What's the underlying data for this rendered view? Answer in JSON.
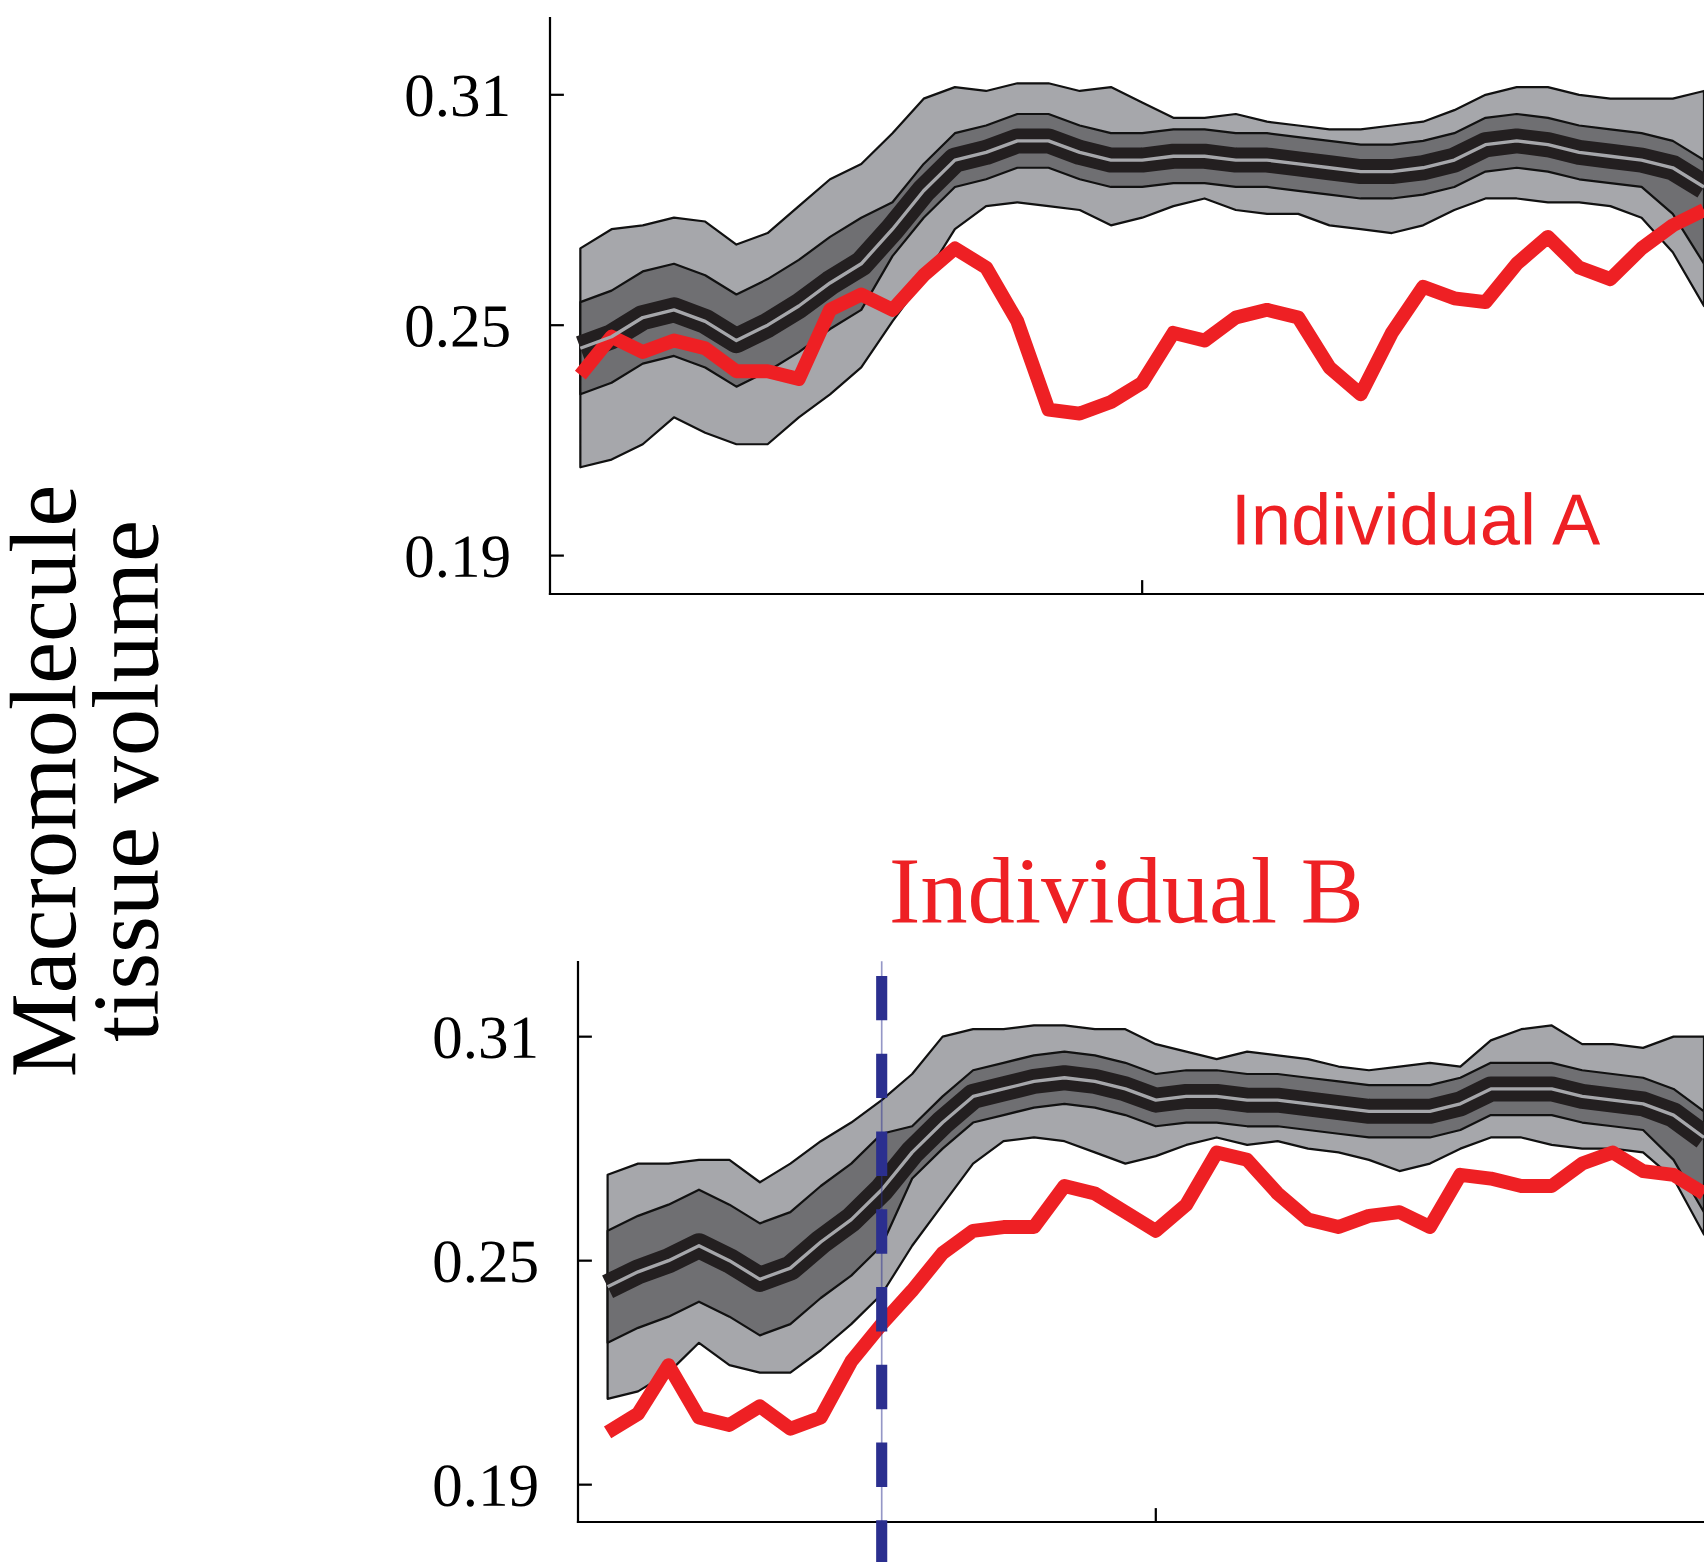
{
  "chart_data": [
    {
      "type": "line",
      "ylabel": "Macromolecule\ntissue volume",
      "categories": [
        null,
        null,
        null,
        null,
        null,
        null,
        null,
        null,
        null,
        null,
        null,
        null,
        null,
        null,
        null,
        null,
        null,
        null,
        null,
        null,
        null,
        null,
        null,
        null,
        null,
        null,
        null,
        null,
        null,
        null,
        null,
        null,
        null,
        null,
        null,
        null,
        null
      ],
      "ylim": [
        0.18,
        0.33
      ],
      "yticks": [
        0.19,
        0.25,
        0.31
      ],
      "tick_labels": "y",
      "series": [
        {
          "color": "#a6a7ab",
          "values": [
            0.244,
            0.247,
            0.252,
            0.254,
            0.251,
            0.246,
            0.25,
            0.255,
            0.261,
            0.266,
            0.275,
            0.285,
            0.293,
            0.295,
            0.298,
            0.298,
            0.295,
            0.293,
            0.293,
            0.294,
            0.294,
            0.293,
            0.293,
            0.292,
            0.291,
            0.29,
            0.29,
            0.291,
            0.293,
            0.297,
            0.298,
            0.297,
            0.295,
            0.294,
            0.293,
            0.291,
            0.286
          ],
          "lower": [
            0.213,
            0.215,
            0.219,
            0.226,
            0.222,
            0.219,
            0.219,
            0.226,
            0.232,
            0.239,
            0.251,
            0.262,
            0.275,
            0.281,
            0.282,
            0.281,
            0.28,
            0.276,
            0.278,
            0.281,
            0.283,
            0.28,
            0.279,
            0.279,
            0.276,
            0.275,
            0.274,
            0.276,
            0.28,
            0.283,
            0.283,
            0.282,
            0.282,
            0.281,
            0.278,
            0.269,
            0.255
          ],
          "upper": [
            0.27,
            0.275,
            0.276,
            0.278,
            0.277,
            0.271,
            0.274,
            0.281,
            0.288,
            0.292,
            0.3,
            0.309,
            0.312,
            0.311,
            0.313,
            0.313,
            0.311,
            0.312,
            0.308,
            0.304,
            0.304,
            0.305,
            0.303,
            0.302,
            0.301,
            0.301,
            0.302,
            0.303,
            0.306,
            0.31,
            0.312,
            0.312,
            0.31,
            0.309,
            0.309,
            0.309,
            0.311
          ]
        },
        {
          "color": "#231f20",
          "values": [
            0.244,
            0.247,
            0.252,
            0.254,
            0.251,
            0.246,
            0.25,
            0.255,
            0.261,
            0.266,
            0.275,
            0.285,
            0.293,
            0.295,
            0.298,
            0.298,
            0.295,
            0.293,
            0.293,
            0.294,
            0.294,
            0.293,
            0.293,
            0.292,
            0.291,
            0.29,
            0.29,
            0.291,
            0.293,
            0.297,
            0.298,
            0.297,
            0.295,
            0.294,
            0.293,
            0.291,
            0.286
          ],
          "lower": [
            0.232,
            0.235,
            0.24,
            0.242,
            0.239,
            0.234,
            0.238,
            0.243,
            0.249,
            0.254,
            0.268,
            0.278,
            0.286,
            0.288,
            0.291,
            0.291,
            0.288,
            0.286,
            0.286,
            0.287,
            0.287,
            0.286,
            0.286,
            0.285,
            0.284,
            0.283,
            0.283,
            0.284,
            0.286,
            0.29,
            0.291,
            0.29,
            0.288,
            0.287,
            0.286,
            0.279,
            0.266
          ],
          "upper": [
            0.256,
            0.259,
            0.264,
            0.266,
            0.263,
            0.258,
            0.262,
            0.267,
            0.273,
            0.278,
            0.282,
            0.292,
            0.3,
            0.302,
            0.305,
            0.305,
            0.302,
            0.3,
            0.3,
            0.301,
            0.301,
            0.3,
            0.3,
            0.299,
            0.298,
            0.297,
            0.297,
            0.298,
            0.3,
            0.304,
            0.305,
            0.304,
            0.302,
            0.301,
            0.3,
            0.298,
            0.293
          ]
        },
        {
          "name": "Individual A",
          "color": "#ee2024",
          "values": [
            0.237,
            0.247,
            0.243,
            0.246,
            0.244,
            0.238,
            0.238,
            0.236,
            0.254,
            0.258,
            0.254,
            0.263,
            0.27,
            0.265,
            0.251,
            0.228,
            0.227,
            0.23,
            0.235,
            0.248,
            0.246,
            0.252,
            0.254,
            0.252,
            0.239,
            0.232,
            0.248,
            0.26,
            0.257,
            0.256,
            0.266,
            0.273,
            0.265,
            0.262,
            0.27,
            0.276,
            0.28
          ]
        }
      ]
    },
    {
      "type": "line",
      "categories": [
        null,
        null,
        null,
        null,
        null,
        null,
        null,
        null,
        null,
        null,
        null,
        null,
        null,
        null,
        null,
        null,
        null,
        null,
        null,
        null,
        null,
        null,
        null,
        null,
        null,
        null,
        null,
        null,
        null,
        null,
        null,
        null,
        null,
        null,
        null,
        null,
        null
      ],
      "ylim": [
        0.18,
        0.33
      ],
      "yticks": [
        0.19,
        0.25,
        0.31
      ],
      "tick_labels": "y",
      "series": [
        {
          "color": "#a6a7ab",
          "values": [
            0.243,
            0.247,
            0.25,
            0.254,
            0.25,
            0.245,
            0.248,
            0.255,
            0.261,
            0.269,
            0.279,
            0.287,
            0.294,
            0.296,
            0.298,
            0.299,
            0.298,
            0.296,
            0.293,
            0.294,
            0.294,
            0.293,
            0.293,
            0.292,
            0.291,
            0.29,
            0.29,
            0.29,
            0.292,
            0.296,
            0.296,
            0.296,
            0.294,
            0.293,
            0.292,
            0.289,
            0.283
          ],
          "lower": [
            0.213,
            0.215,
            0.22,
            0.228,
            0.222,
            0.22,
            0.22,
            0.226,
            0.233,
            0.241,
            0.254,
            0.265,
            0.276,
            0.282,
            0.283,
            0.282,
            0.279,
            0.276,
            0.278,
            0.281,
            0.283,
            0.281,
            0.282,
            0.28,
            0.279,
            0.277,
            0.274,
            0.276,
            0.28,
            0.283,
            0.283,
            0.281,
            0.28,
            0.28,
            0.279,
            0.272,
            0.257
          ],
          "upper": [
            0.273,
            0.276,
            0.276,
            0.277,
            0.277,
            0.271,
            0.276,
            0.282,
            0.287,
            0.293,
            0.3,
            0.31,
            0.312,
            0.312,
            0.313,
            0.313,
            0.312,
            0.312,
            0.308,
            0.306,
            0.304,
            0.306,
            0.305,
            0.304,
            0.302,
            0.301,
            0.302,
            0.303,
            0.302,
            0.309,
            0.312,
            0.313,
            0.308,
            0.308,
            0.307,
            0.31,
            0.31
          ]
        },
        {
          "color": "#231f20",
          "values": [
            0.243,
            0.247,
            0.25,
            0.254,
            0.25,
            0.245,
            0.248,
            0.255,
            0.261,
            0.269,
            0.279,
            0.287,
            0.294,
            0.296,
            0.298,
            0.299,
            0.298,
            0.296,
            0.293,
            0.294,
            0.294,
            0.293,
            0.293,
            0.292,
            0.291,
            0.29,
            0.29,
            0.29,
            0.292,
            0.296,
            0.296,
            0.296,
            0.294,
            0.293,
            0.292,
            0.289,
            0.283
          ],
          "lower": [
            0.228,
            0.232,
            0.235,
            0.239,
            0.235,
            0.23,
            0.233,
            0.24,
            0.246,
            0.254,
            0.272,
            0.28,
            0.287,
            0.289,
            0.291,
            0.292,
            0.291,
            0.289,
            0.286,
            0.287,
            0.287,
            0.286,
            0.286,
            0.285,
            0.284,
            0.283,
            0.283,
            0.283,
            0.285,
            0.289,
            0.289,
            0.289,
            0.287,
            0.286,
            0.285,
            0.277,
            0.263
          ],
          "upper": [
            0.258,
            0.262,
            0.265,
            0.269,
            0.265,
            0.26,
            0.263,
            0.27,
            0.276,
            0.284,
            0.286,
            0.294,
            0.301,
            0.303,
            0.305,
            0.306,
            0.305,
            0.303,
            0.3,
            0.301,
            0.301,
            0.3,
            0.3,
            0.299,
            0.298,
            0.297,
            0.297,
            0.297,
            0.299,
            0.303,
            0.303,
            0.303,
            0.301,
            0.3,
            0.299,
            0.296,
            0.29
          ]
        },
        {
          "name": "Individual B",
          "color": "#ee2024",
          "values": [
            0.204,
            0.209,
            0.222,
            0.208,
            0.206,
            0.211,
            0.205,
            0.208,
            0.223,
            0.233,
            0.242,
            0.252,
            0.258,
            0.259,
            0.259,
            0.27,
            0.268,
            0.263,
            0.258,
            0.265,
            0.279,
            0.277,
            0.268,
            0.261,
            0.259,
            0.262,
            0.263,
            0.259,
            0.273,
            0.272,
            0.27,
            0.27,
            0.276,
            0.279,
            0.274,
            0.273,
            0.268
          ]
        }
      ]
    }
  ]
}
